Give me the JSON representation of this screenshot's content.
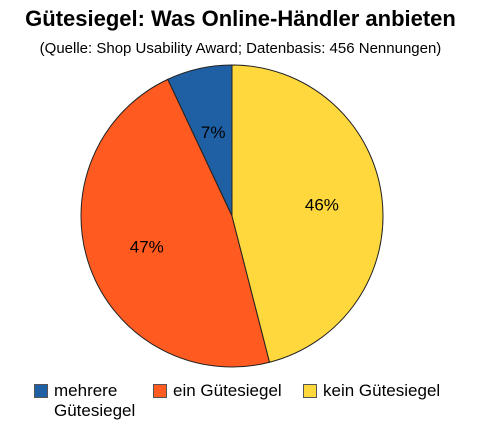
{
  "chart_data": {
    "type": "pie",
    "title": "Gütesiegel: Was Online-Händler anbieten",
    "subtitle": "(Quelle: Shop Usability Award; Datenbasis: 456 Nennungen)",
    "slices": [
      {
        "name": "mehrere Gütesiegel",
        "value": 7,
        "label": "7%",
        "color": "#1f5fa3"
      },
      {
        "name": "ein Gütesiegel",
        "value": 47,
        "label": "47%",
        "color": "#ff5a1f"
      },
      {
        "name": "kein Gütesiegel",
        "value": 46,
        "label": "46%",
        "color": "#ffd83d"
      }
    ],
    "start": "top",
    "direction": "counterclockwise",
    "legend_position": "bottom"
  },
  "legend": {
    "items": [
      {
        "line1": "mehrere",
        "line2": "Gütesiegel"
      },
      {
        "line1": "ein Gütesiegel",
        "line2": ""
      },
      {
        "line1": "kein Gütesiegel",
        "line2": ""
      }
    ]
  }
}
